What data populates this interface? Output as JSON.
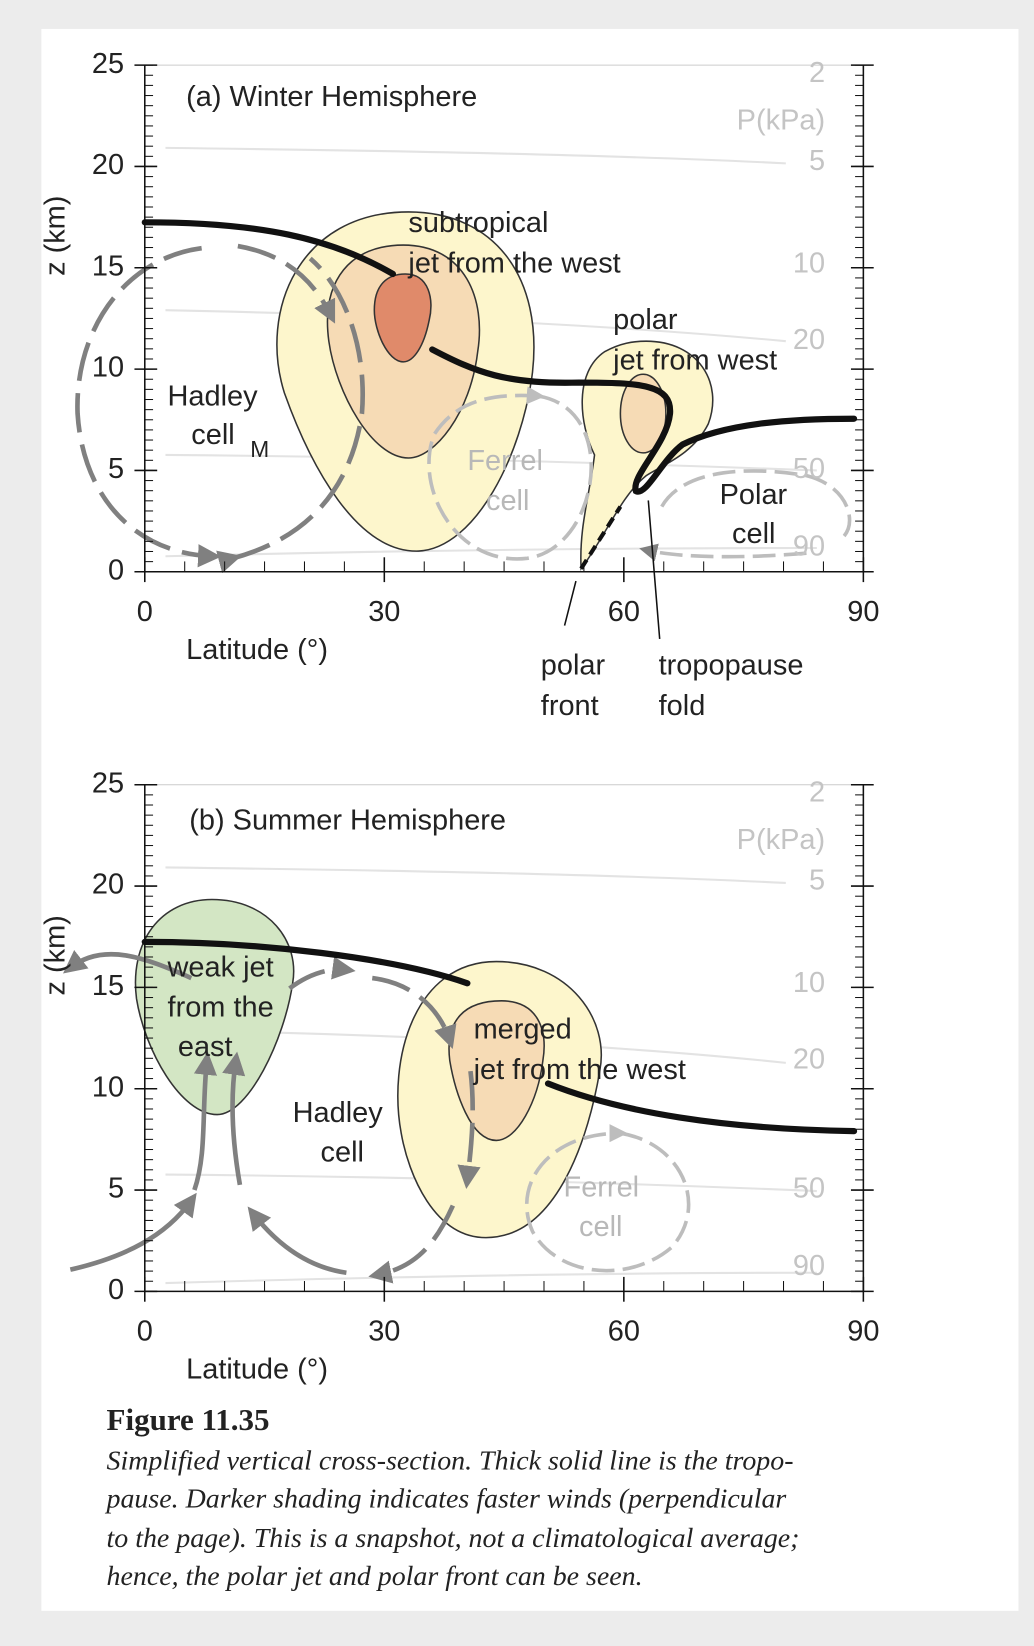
{
  "panels": [
    {
      "title": "(a) Winter Hemisphere",
      "y_label": "z (km)",
      "x_label": "Latitude (°)",
      "xlim": [
        0,
        90
      ],
      "ylim": [
        0,
        25
      ],
      "xticks": [
        0,
        30,
        60,
        90
      ],
      "yticks": [
        0,
        5,
        10,
        15,
        20,
        25
      ],
      "pressure_label": "P(kPa)",
      "pressure_ticks": [
        2,
        5,
        10,
        20,
        50,
        90
      ],
      "labels": {
        "subtropical_jet": [
          "subtropical",
          "jet from the west"
        ],
        "polar_jet": [
          "polar",
          "jet from west"
        ],
        "hadley_cell": [
          "Hadley",
          "cell"
        ],
        "hadley_marker": "M",
        "ferrel_cell": [
          "Ferrel",
          "cell"
        ],
        "polar_cell": [
          "Polar",
          "cell"
        ],
        "polar_front": [
          "polar",
          "front"
        ],
        "tropopause_fold": [
          "tropopause",
          "fold"
        ]
      }
    },
    {
      "title": "(b) Summer Hemisphere",
      "y_label": "z (km)",
      "x_label": "Latitude (°)",
      "xlim": [
        0,
        90
      ],
      "ylim": [
        0,
        25
      ],
      "xticks": [
        0,
        30,
        60,
        90
      ],
      "yticks": [
        0,
        5,
        10,
        15,
        20,
        25
      ],
      "pressure_label": "P(kPa)",
      "pressure_ticks": [
        2,
        5,
        10,
        20,
        50,
        90
      ],
      "labels": {
        "weak_jet": [
          "weak jet",
          "from the",
          "east"
        ],
        "merged_jet": [
          "merged",
          "jet from the west"
        ],
        "hadley_cell": [
          "Hadley",
          "cell"
        ],
        "ferrel_cell": [
          "Ferrel",
          "cell"
        ]
      }
    }
  ],
  "caption": {
    "title": "Figure 11.35",
    "lines": [
      "Simplified vertical cross-section.  Thick solid line is the tropo-",
      "pause.  Darker shading indicates faster winds (perpendicular",
      "to the page).  This is a snapshot, not a climatological average;",
      "hence, the polar jet and polar front can be seen."
    ]
  }
}
